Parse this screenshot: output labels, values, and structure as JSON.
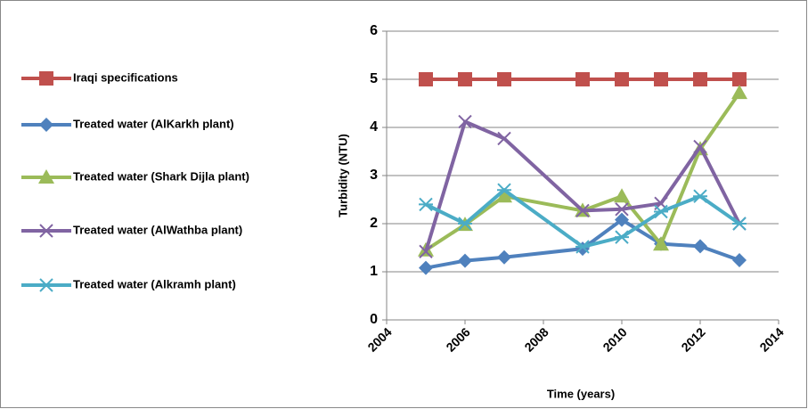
{
  "chart_data": {
    "type": "line",
    "x": [
      2005,
      2006,
      2007,
      2009,
      2010,
      2011,
      2012,
      2013
    ],
    "series": [
      {
        "name": "Iraqi specifications",
        "color": "#c0504d",
        "marker": "square",
        "values": [
          5,
          5,
          5,
          5,
          5,
          5,
          5,
          5
        ]
      },
      {
        "name": "Treated water (AlKarkh plant)",
        "color": "#4f81bd",
        "marker": "diamond",
        "values": [
          1.08,
          1.23,
          1.3,
          1.48,
          2.08,
          1.58,
          1.53,
          1.24
        ]
      },
      {
        "name": "Treated water (Shark Dijla plant)",
        "color": "#9bbb59",
        "marker": "triangle",
        "values": [
          1.45,
          1.98,
          2.57,
          2.27,
          2.57,
          1.57,
          3.55,
          4.72
        ]
      },
      {
        "name": "Treated water (AlWathba plant)",
        "color": "#8064a2",
        "marker": "x",
        "values": [
          1.42,
          4.12,
          3.77,
          2.27,
          2.3,
          2.42,
          3.6,
          2.0
        ]
      },
      {
        "name": "Treated water (Alkramh plant)",
        "color": "#4bacc6",
        "marker": "star",
        "values": [
          2.4,
          2.0,
          2.7,
          1.52,
          1.72,
          2.25,
          2.57,
          2.0
        ]
      }
    ],
    "xlabel": "Time (years)",
    "ylabel": "Turbidity (NTU)",
    "xlim": [
      2004,
      2014
    ],
    "xticks": [
      2004,
      2006,
      2008,
      2010,
      2012,
      2014
    ],
    "ylim": [
      0,
      6
    ],
    "yticks": [
      0,
      1,
      2,
      3,
      4,
      5,
      6
    ],
    "grid": true,
    "legend": "left"
  }
}
